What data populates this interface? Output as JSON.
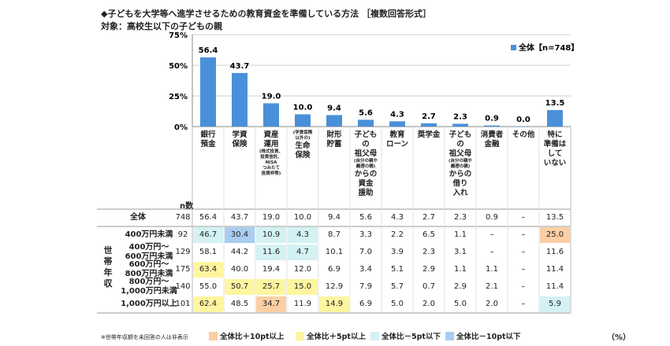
{
  "title": "◆子どもを大学等へ進学させるための教育資金を準備している方法 ［複数回答形式］",
  "subtitle": "対象：高校生以下の子どもの親",
  "colors": {
    "bar": "#4a90d9",
    "orange": "#fbcfa3",
    "yellow": "#fdf5a0",
    "lightcyan": "#d4f1f4",
    "lightblue": "#a9cdf0",
    "grid": "#cfcfcf"
  },
  "chart_data": {
    "type": "bar",
    "title": "◆子どもを大学等へ進学させるための教育資金を準備している方法 ［複数回答形式］",
    "legend": "全体【n=748】",
    "legend_position": "top-right",
    "yticks": [
      "75%",
      "50%",
      "25%",
      "0%"
    ],
    "ylim": [
      0,
      75
    ],
    "categories": [
      {
        "label": "銀行\n預金",
        "note": ""
      },
      {
        "label": "学資\n保険",
        "note": ""
      },
      {
        "label": "資産\n運用",
        "note": "(株式投資、\n投資信託、\nNISA\nつみたて\n投資枠等)"
      },
      {
        "label": "生命\n保険",
        "note": "(学資保険\n以外の)",
        "note_first": true
      },
      {
        "label": "財形\n貯蓄",
        "note": ""
      },
      {
        "label": "子ども\nの\n祖父母",
        "note": "(自分の親や\n義理の親)",
        "tail": "からの\n資金\n援助"
      },
      {
        "label": "教育\nローン",
        "note": ""
      },
      {
        "label": "奨学金",
        "note": ""
      },
      {
        "label": "子ども\nの\n祖父母",
        "note": "(自分の親や\n義理の親)",
        "tail": "からの\n借り\n入れ"
      },
      {
        "label": "消費者\n金融",
        "note": ""
      },
      {
        "label": "その他",
        "note": ""
      },
      {
        "label": "特に\n準備は\nして\nいない",
        "note": ""
      }
    ],
    "values": [
      56.4,
      43.7,
      19.0,
      10.0,
      9.4,
      5.6,
      4.3,
      2.7,
      2.3,
      0.9,
      0.0,
      13.5
    ],
    "value_labels": [
      "56.4",
      "43.7",
      "19.0",
      "10.0",
      "9.4",
      "5.6",
      "4.3",
      "2.7",
      "2.3",
      "0.9",
      "0.0",
      "13.5"
    ]
  },
  "table": {
    "n_header": "n数",
    "group_label": "世帯年収",
    "rows": [
      {
        "label": "全体",
        "n": "748",
        "values": [
          "56.4",
          "43.7",
          "19.0",
          "10.0",
          "9.4",
          "5.6",
          "4.3",
          "2.7",
          "2.3",
          "0.9",
          "–",
          "13.5"
        ],
        "hl": [
          "",
          "",
          "",
          "",
          "",
          "",
          "",
          "",
          "",
          "",
          "",
          ""
        ]
      },
      {
        "label": "400万円未満",
        "n": "92",
        "values": [
          "46.7",
          "30.4",
          "10.9",
          "4.3",
          "8.7",
          "3.3",
          "2.2",
          "6.5",
          "1.1",
          "–",
          "–",
          "25.0"
        ],
        "hl": [
          "lightcyan",
          "lightblue",
          "lightcyan",
          "lightcyan",
          "",
          "",
          "",
          "",
          "",
          "",
          "",
          "orange"
        ]
      },
      {
        "label": "400万円～\n600万円未満",
        "n": "129",
        "values": [
          "58.1",
          "44.2",
          "11.6",
          "4.7",
          "10.1",
          "7.0",
          "3.9",
          "2.3",
          "3.1",
          "–",
          "–",
          "11.6"
        ],
        "hl": [
          "",
          "",
          "lightcyan",
          "lightcyan",
          "",
          "",
          "",
          "",
          "",
          "",
          "",
          ""
        ]
      },
      {
        "label": "600万円～\n800万円未満",
        "n": "175",
        "values": [
          "63.4",
          "40.0",
          "19.4",
          "12.0",
          "6.9",
          "3.4",
          "5.1",
          "2.9",
          "1.1",
          "1.1",
          "–",
          "11.4"
        ],
        "hl": [
          "yellow",
          "",
          "",
          "",
          "",
          "",
          "",
          "",
          "",
          "",
          "",
          ""
        ]
      },
      {
        "label": "800万円～\n1,000万円未満",
        "n": "140",
        "values": [
          "55.0",
          "50.7",
          "25.7",
          "15.0",
          "12.9",
          "7.9",
          "5.7",
          "0.7",
          "2.9",
          "2.1",
          "–",
          "11.4"
        ],
        "hl": [
          "",
          "yellow",
          "yellow",
          "yellow",
          "",
          "",
          "",
          "",
          "",
          "",
          "",
          ""
        ]
      },
      {
        "label": "1,000万円以上",
        "n": "101",
        "values": [
          "62.4",
          "48.5",
          "34.7",
          "11.9",
          "14.9",
          "6.9",
          "5.0",
          "2.0",
          "5.0",
          "2.0",
          "–",
          "5.9"
        ],
        "hl": [
          "yellow",
          "",
          "orange",
          "",
          "yellow",
          "",
          "",
          "",
          "",
          "",
          "",
          "lightcyan"
        ]
      }
    ]
  },
  "footnote": "※世帯年収額を未回答の人は非表示",
  "legend_items": [
    {
      "label": "全体比＋10pt以上",
      "color": "orange"
    },
    {
      "label": "全体比＋5pt以上",
      "color": "yellow"
    },
    {
      "label": "全体比－5pt以下",
      "color": "lightcyan"
    },
    {
      "label": "全体比－10pt以下",
      "color": "lightblue"
    }
  ],
  "unit": "（%）"
}
